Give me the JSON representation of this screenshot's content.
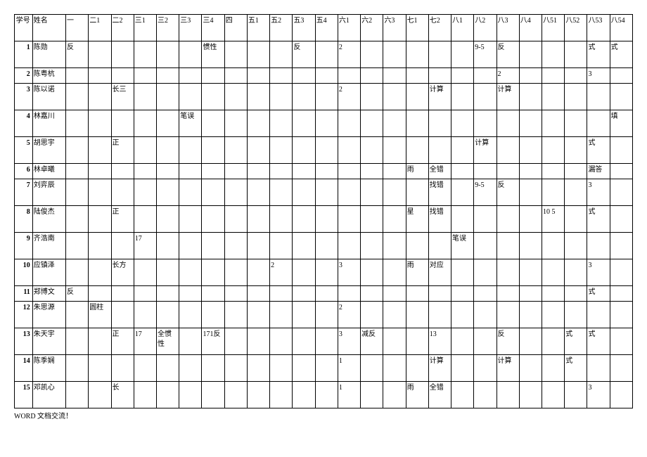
{
  "footer": "WORD 文档交流！",
  "columns": [
    {
      "key": "id",
      "label": "学号",
      "class": "col-id"
    },
    {
      "key": "name",
      "label": "姓名",
      "class": "col-name"
    },
    {
      "key": "c1",
      "label": "一",
      "class": "col-data"
    },
    {
      "key": "c2",
      "label": "二1",
      "class": "col-data"
    },
    {
      "key": "c3",
      "label": "二2",
      "class": "col-data"
    },
    {
      "key": "c4",
      "label": "三1",
      "class": "col-data"
    },
    {
      "key": "c5",
      "label": "三2",
      "class": "col-data"
    },
    {
      "key": "c6",
      "label": "三3",
      "class": "col-data"
    },
    {
      "key": "c7",
      "label": "三4",
      "class": "col-data"
    },
    {
      "key": "c8",
      "label": "四",
      "class": "col-data"
    },
    {
      "key": "c9",
      "label": "五1",
      "class": "col-data"
    },
    {
      "key": "c10",
      "label": "五2",
      "class": "col-data"
    },
    {
      "key": "c11",
      "label": "五3",
      "class": "col-data"
    },
    {
      "key": "c12",
      "label": "五4",
      "class": "col-data"
    },
    {
      "key": "c13",
      "label": "六1",
      "class": "col-data"
    },
    {
      "key": "c14",
      "label": "六2",
      "class": "col-data"
    },
    {
      "key": "c15",
      "label": "六3",
      "class": "col-data"
    },
    {
      "key": "c16",
      "label": "七1",
      "class": "col-data"
    },
    {
      "key": "c17",
      "label": "七2",
      "class": "col-data"
    },
    {
      "key": "c18",
      "label": "八1",
      "class": "col-data"
    },
    {
      "key": "c19",
      "label": "八2",
      "class": "col-data"
    },
    {
      "key": "c20",
      "label": "八3",
      "class": "col-data"
    },
    {
      "key": "c21",
      "label": "八4",
      "class": "col-data"
    },
    {
      "key": "c22",
      "label": "八51",
      "class": "col-data"
    },
    {
      "key": "c23",
      "label": "八52",
      "class": "col-data"
    },
    {
      "key": "c24",
      "label": "八53",
      "class": "col-data"
    },
    {
      "key": "c25",
      "label": "八54",
      "class": "col-data"
    }
  ],
  "rows": [
    {
      "h": "row-h",
      "id": "1",
      "name": "陈勋",
      "c1": "反",
      "c7": "惯性",
      "c11": "反",
      "c13": "2",
      "c19": "9-5",
      "c20": "反",
      "c24": "式",
      "c25": "式"
    },
    {
      "h": "row-s",
      "id": "2",
      "name": "陈粤杭",
      "c20": "2",
      "c24": "3"
    },
    {
      "h": "row-h",
      "id": "3",
      "name": "陈以诺",
      "c3": "长三",
      "c13": "2",
      "c17": "计算",
      "c20": "计算"
    },
    {
      "h": "row-h",
      "id": "4",
      "name": "林嘉川",
      "c6": "笔误",
      "c25": "填"
    },
    {
      "h": "row-h",
      "id": "5",
      "name": "胡思宇",
      "c3": "正",
      "c19": "计算",
      "c24": "式"
    },
    {
      "h": "row-s",
      "id": "6",
      "name": "林卓曦",
      "c16": "雨",
      "c17": "全错",
      "c24": "漏答"
    },
    {
      "h": "row-h",
      "id": "7",
      "name": "刘弈辰",
      "c17": "找错",
      "c19": "9-5",
      "c20": "反",
      "c24": "3"
    },
    {
      "h": "row-h",
      "id": "8",
      "name": "陆俊杰",
      "c3": "正",
      "c16": "星",
      "c17": "找错",
      "c22": "10  5",
      "c24": "式"
    },
    {
      "h": "row-h",
      "id": "9",
      "name": "齐浩南",
      "c4": "17",
      "c18": "笔误"
    },
    {
      "h": "row-h",
      "id": "10",
      "name": "应镇泽",
      "c3": "长方",
      "c10": "2",
      "c13": "3",
      "c16": "雨",
      "c17": "对应",
      "c24": "3"
    },
    {
      "h": "row-s",
      "id": "11",
      "name": "郑博文",
      "c1": "反",
      "c24": "式"
    },
    {
      "h": "row-h",
      "id": "12",
      "name": "朱思源",
      "c2": "圆柱",
      "c13": "2"
    },
    {
      "h": "row-h",
      "id": "13",
      "name": "朱天宇",
      "c3": "正",
      "c4": "17",
      "c5": "全惯性",
      "c7": "171反",
      "c13": "3",
      "c14": "减反",
      "c17": "13",
      "c20": "反",
      "c23": "式",
      "c24": "式"
    },
    {
      "h": "row-h",
      "id": "14",
      "name": "陈季娴",
      "c13": "1",
      "c17": "计算",
      "c20": "计算",
      "c23": "式"
    },
    {
      "h": "row-h",
      "id": "15",
      "name": "邓凯心",
      "c3": "长",
      "c13": "1",
      "c16": "雨",
      "c17": "全错",
      "c24": "3"
    }
  ]
}
